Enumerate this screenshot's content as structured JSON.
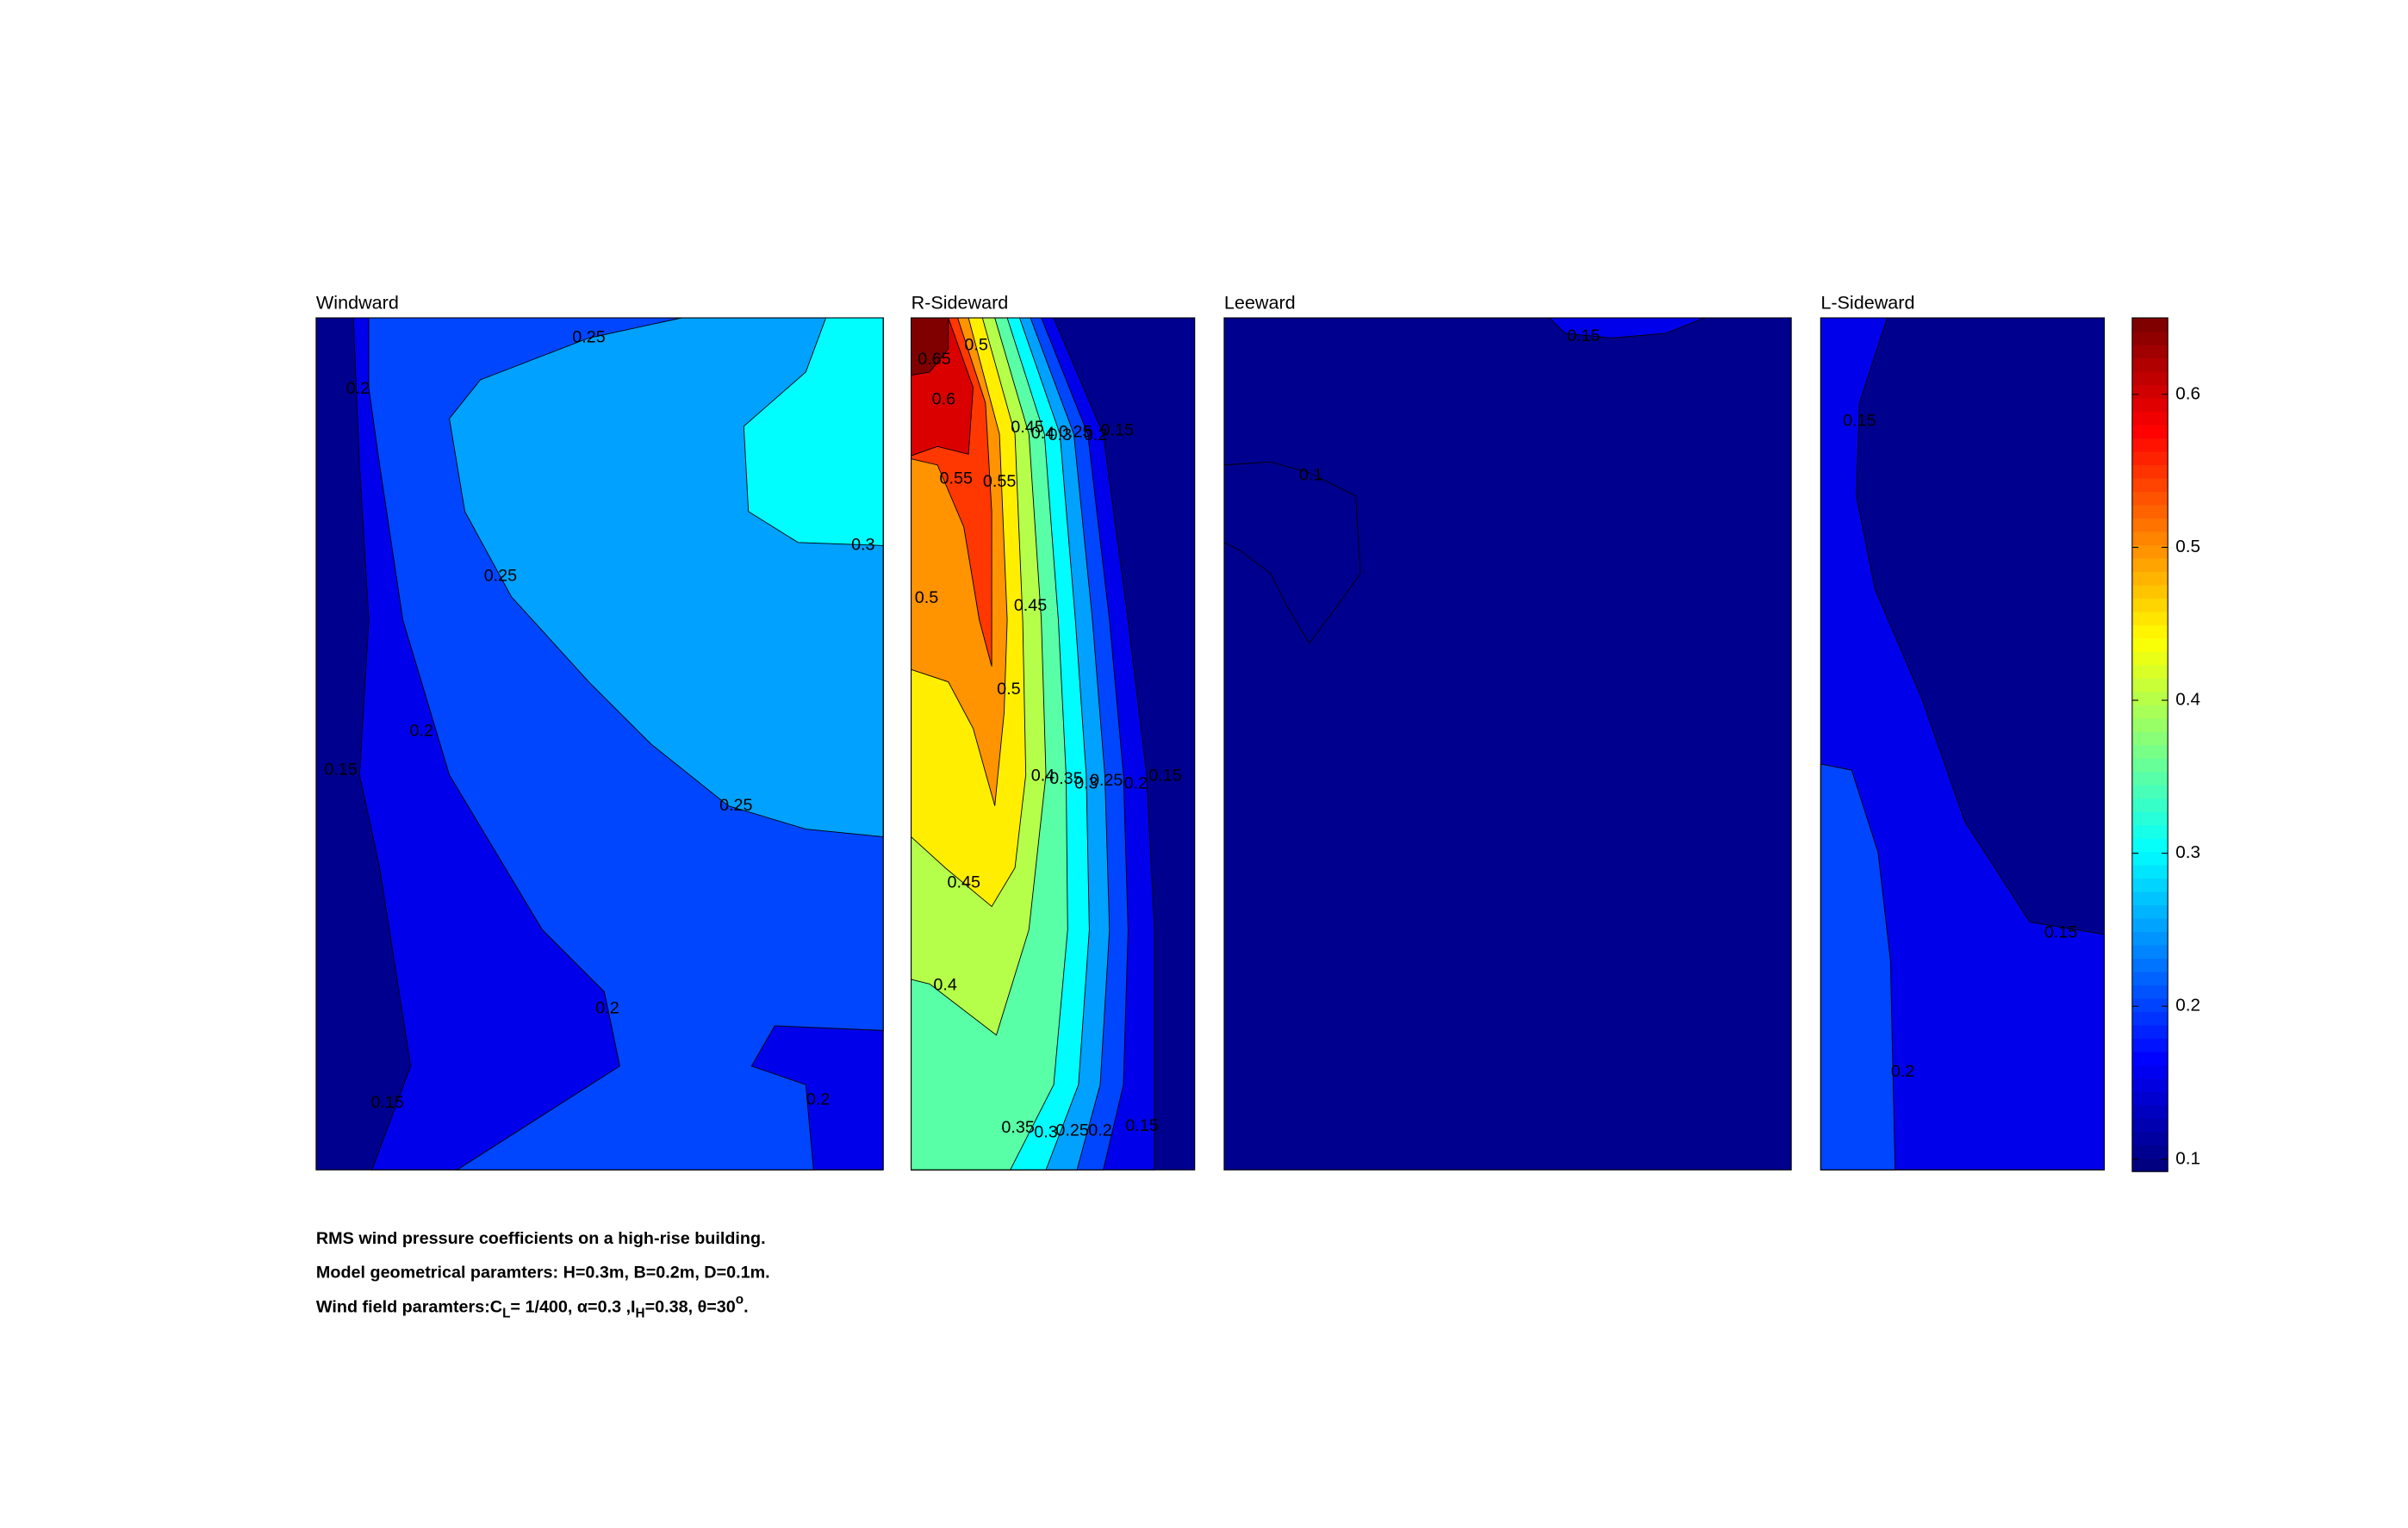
{
  "chart_data": {
    "type": "contour",
    "panels": [
      {
        "title": "Windward",
        "levels": [
          0.1,
          0.15,
          0.2,
          0.25,
          0.3
        ],
        "contour_labels": [
          0.25,
          0.2,
          0.3,
          0.25,
          0.2,
          0.15,
          0.25,
          0.2,
          0.15,
          0.2
        ]
      },
      {
        "title": "R-Sideward",
        "levels": [
          0.1,
          0.15,
          0.2,
          0.25,
          0.3,
          0.35,
          0.4,
          0.45,
          0.5,
          0.55,
          0.6,
          0.65
        ],
        "contour_labels": [
          0.65,
          0.5,
          0.6,
          0.45,
          0.4,
          0.3,
          0.25,
          0.2,
          0.15,
          0.55,
          0.55,
          0.5,
          0.45,
          0.5,
          0.4,
          0.35,
          0.3,
          0.25,
          0.2,
          0.15,
          0.45,
          0.4,
          0.35,
          0.3,
          0.25,
          0.2,
          0.15
        ]
      },
      {
        "title": "Leeward",
        "levels": [
          0.1,
          0.15
        ],
        "contour_labels": [
          0.15,
          0.1
        ]
      },
      {
        "title": "L-Sideward",
        "levels": [
          0.1,
          0.15,
          0.2
        ],
        "contour_labels": [
          0.15,
          0.15,
          0.2
        ]
      }
    ],
    "colorbar": {
      "ylim": [
        0.092,
        0.65
      ],
      "yticks": [
        0.1,
        0.2,
        0.3,
        0.4,
        0.5,
        0.6
      ],
      "colormap": "jet"
    },
    "caption": [
      [
        {
          "text": "RMS wind pressure coefficients on a high-rise building."
        }
      ],
      [
        {
          "text": "Model geometrical paramters: H=0.3m, B=0.2m, D=0.1m."
        }
      ],
      [
        {
          "text": "Wind field paramters:C"
        },
        {
          "text": "L",
          "shift": "sub"
        },
        {
          "text": "= 1/400, α=0.3 ,I"
        },
        {
          "text": "H",
          "shift": "sub"
        },
        {
          "text": "=0.38, θ=30"
        },
        {
          "text": "o",
          "shift": "super"
        },
        {
          "text": "."
        }
      ]
    ]
  }
}
